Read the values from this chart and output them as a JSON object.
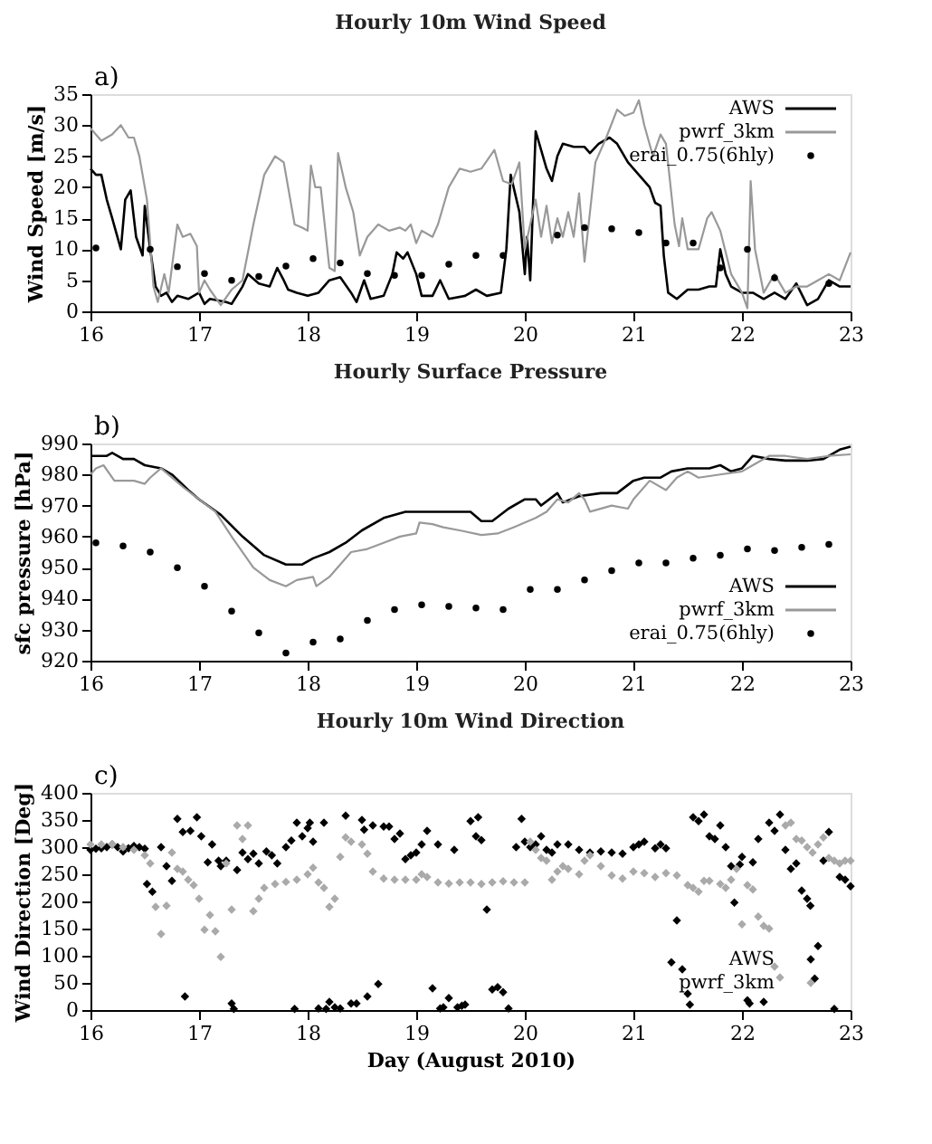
{
  "chart_data": [
    {
      "type": "line",
      "title": "Hourly 10m Wind Speed",
      "annotations": [
        "a)"
      ],
      "ylabel": "Wind Speed [m/s]",
      "xlim": [
        16,
        23
      ],
      "xticks": [
        16,
        17,
        18,
        19,
        20,
        21,
        22,
        23
      ],
      "ylim": [
        0,
        35
      ],
      "yticks": [
        0,
        5,
        10,
        15,
        20,
        25,
        30,
        35
      ],
      "grid": false,
      "legend": "top right",
      "series": [
        {
          "name": "AWS",
          "color": "#000000",
          "x": [
            16.0,
            16.05,
            16.1,
            16.15,
            16.2,
            16.28,
            16.32,
            16.37,
            16.42,
            16.48,
            16.5,
            16.55,
            16.6,
            16.65,
            16.7,
            16.75,
            16.8,
            16.9,
            17.0,
            17.05,
            17.1,
            17.25,
            17.3,
            17.4,
            17.45,
            17.55,
            17.65,
            17.72,
            17.78,
            17.82,
            17.9,
            18.0,
            18.1,
            18.2,
            18.3,
            18.4,
            18.45,
            18.52,
            18.58,
            18.7,
            18.78,
            18.82,
            18.88,
            18.92,
            19.0,
            19.05,
            19.15,
            19.22,
            19.3,
            19.45,
            19.55,
            19.65,
            19.78,
            19.83,
            19.87,
            19.95,
            20.0,
            20.02,
            20.05,
            20.1,
            20.15,
            20.2,
            20.25,
            20.3,
            20.35,
            20.45,
            20.55,
            20.6,
            20.68,
            20.78,
            20.85,
            20.95,
            21.05,
            21.15,
            21.2,
            21.25,
            21.28,
            21.32,
            21.4,
            21.5,
            21.6,
            21.7,
            21.76,
            21.8,
            21.85,
            21.9,
            22.0,
            22.1,
            22.2,
            22.3,
            22.4,
            22.5,
            22.6,
            22.7,
            22.8,
            22.9,
            23.0
          ],
          "values": [
            23,
            22,
            22,
            18,
            15,
            10,
            18,
            19.5,
            12,
            9,
            17,
            10,
            4,
            2.5,
            3,
            1.5,
            2.5,
            2,
            3,
            1.2,
            2,
            1.5,
            1.2,
            4,
            6,
            4.5,
            4,
            7,
            5,
            3.5,
            3,
            2.5,
            3,
            5,
            5.5,
            3,
            1.5,
            5,
            2,
            2.5,
            6,
            9.5,
            8.5,
            9.5,
            6,
            2.5,
            2.5,
            5,
            2,
            2.5,
            3.5,
            2.5,
            3,
            10,
            22,
            16,
            6,
            12,
            5,
            29,
            26,
            23,
            21,
            25,
            27,
            26.5,
            26.5,
            25.5,
            27,
            28,
            27,
            24,
            22,
            20,
            17.5,
            17,
            9,
            3,
            2,
            3.5,
            3.5,
            4,
            4,
            10,
            6,
            4,
            3,
            3,
            2,
            3,
            2,
            4.5,
            1,
            2,
            5,
            4,
            4
          ]
        },
        {
          "name": "pwrf_3km",
          "color": "#999999",
          "x": [
            16.0,
            16.1,
            16.2,
            16.28,
            16.35,
            16.4,
            16.45,
            16.52,
            16.58,
            16.62,
            16.68,
            16.72,
            16.8,
            16.85,
            16.92,
            16.98,
            17.0,
            17.05,
            17.1,
            17.2,
            17.3,
            17.4,
            17.5,
            17.6,
            17.7,
            17.78,
            17.88,
            17.95,
            18.0,
            18.03,
            18.07,
            18.12,
            18.2,
            18.25,
            18.28,
            18.35,
            18.42,
            18.48,
            18.55,
            18.65,
            18.75,
            18.85,
            18.9,
            18.95,
            19.0,
            19.05,
            19.15,
            19.2,
            19.3,
            19.4,
            19.5,
            19.6,
            19.72,
            19.8,
            19.88,
            19.95,
            20.0,
            20.05,
            20.1,
            20.15,
            20.2,
            20.25,
            20.3,
            20.35,
            20.4,
            20.45,
            20.5,
            20.55,
            20.6,
            20.65,
            20.75,
            20.85,
            20.92,
            21.0,
            21.05,
            21.1,
            21.18,
            21.25,
            21.3,
            21.38,
            21.42,
            21.45,
            21.5,
            21.6,
            21.68,
            21.72,
            21.8,
            21.9,
            22.0,
            22.05,
            22.08,
            22.12,
            22.2,
            22.3,
            22.4,
            22.5,
            22.6,
            22.7,
            22.8,
            22.9,
            23.0
          ],
          "values": [
            29.5,
            27.5,
            28.5,
            30,
            28,
            28,
            25,
            18,
            4,
            1.5,
            6,
            3,
            14,
            12,
            12.5,
            10.5,
            3,
            5,
            3.5,
            1,
            3.5,
            5,
            14,
            22,
            25,
            24,
            14,
            13.5,
            13,
            23.5,
            20,
            20,
            7,
            6.5,
            25.5,
            20,
            16,
            9,
            12,
            14,
            13,
            13.5,
            13,
            14,
            11,
            13,
            12,
            14,
            20,
            23,
            22.5,
            23,
            26,
            21,
            20.5,
            24,
            10,
            14,
            18,
            12,
            17,
            11,
            15,
            12,
            16,
            12,
            19,
            8,
            16,
            24,
            28,
            32.5,
            31.5,
            32,
            34,
            30,
            25,
            28.5,
            27,
            14,
            10.5,
            15,
            10,
            10,
            15,
            16,
            13,
            6,
            3,
            0.5,
            21,
            10,
            3,
            6,
            3,
            4,
            4,
            5,
            6,
            5,
            9.5
          ]
        },
        {
          "name": "erai_0.75(6hly)",
          "type": "scatter",
          "marker": "circle",
          "color": "#000000",
          "x": [
            16.05,
            16.55,
            16.8,
            17.05,
            17.3,
            17.55,
            17.8,
            18.05,
            18.3,
            18.55,
            18.8,
            19.05,
            19.3,
            19.55,
            19.8,
            20.3,
            20.55,
            20.8,
            21.05,
            21.3,
            21.55,
            21.8,
            22.05,
            22.3,
            22.8
          ],
          "values": [
            10.2,
            10,
            7.2,
            6.1,
            5,
            5.6,
            7.3,
            8.5,
            7.8,
            6.1,
            5.8,
            5.8,
            7.6,
            9,
            9,
            12.3,
            13.5,
            13.3,
            12.7,
            11,
            11,
            7,
            10,
            5.4,
            4.5
          ]
        }
      ]
    },
    {
      "type": "line",
      "title": "Hourly Surface Pressure",
      "annotations": [
        "b)"
      ],
      "ylabel": "sfc pressure [hPa]",
      "xlim": [
        16,
        23
      ],
      "xticks": [
        16,
        17,
        18,
        19,
        20,
        21,
        22,
        23
      ],
      "ylim": [
        920,
        990
      ],
      "yticks": [
        920,
        930,
        940,
        950,
        960,
        970,
        980,
        990
      ],
      "grid": false,
      "legend": "bottom right",
      "series": [
        {
          "name": "AWS",
          "color": "#000000",
          "x": [
            16.0,
            16.15,
            16.2,
            16.3,
            16.4,
            16.5,
            16.65,
            16.75,
            16.9,
            17.0,
            17.2,
            17.4,
            17.6,
            17.8,
            17.95,
            18.05,
            18.2,
            18.35,
            18.5,
            18.7,
            18.9,
            19.2,
            19.5,
            19.6,
            19.7,
            19.85,
            20.0,
            20.1,
            20.15,
            20.3,
            20.35,
            20.5,
            20.7,
            20.85,
            21.0,
            21.1,
            21.25,
            21.35,
            21.5,
            21.7,
            21.8,
            21.9,
            22.0,
            22.1,
            22.25,
            22.4,
            22.6,
            22.75,
            22.9,
            23.0
          ],
          "values": [
            986,
            986,
            987,
            985,
            985,
            983,
            982,
            980,
            975,
            972,
            967,
            960,
            954,
            951,
            951,
            953,
            955,
            958,
            962,
            966,
            968,
            968,
            968,
            965,
            965,
            969,
            972,
            972,
            970,
            974,
            971,
            973,
            974,
            974,
            978,
            979,
            979,
            981,
            982,
            982,
            983,
            981,
            982,
            986,
            985,
            984.5,
            984.5,
            985,
            988,
            989
          ]
        },
        {
          "name": "pwrf_3km",
          "color": "#999999",
          "x": [
            16.0,
            16.05,
            16.12,
            16.22,
            16.4,
            16.5,
            16.55,
            16.65,
            16.75,
            16.85,
            17.0,
            17.15,
            17.3,
            17.5,
            17.65,
            17.8,
            17.9,
            18.05,
            18.08,
            18.2,
            18.3,
            18.4,
            18.55,
            18.7,
            18.85,
            19.0,
            19.03,
            19.15,
            19.25,
            19.4,
            19.6,
            19.75,
            19.9,
            20.1,
            20.2,
            20.3,
            20.4,
            20.5,
            20.55,
            20.6,
            20.8,
            20.95,
            21.0,
            21.15,
            21.3,
            21.4,
            21.5,
            21.6,
            21.8,
            22.0,
            22.1,
            22.25,
            22.4,
            22.6,
            22.8,
            23.0
          ],
          "values": [
            980,
            982,
            983,
            978,
            978,
            977,
            979,
            982,
            979,
            976,
            972,
            968,
            960,
            950,
            946,
            944,
            946,
            947,
            944,
            947,
            951,
            955,
            956,
            958,
            960,
            961,
            964.5,
            964,
            963,
            962,
            960.5,
            961,
            963,
            966,
            968,
            972,
            971,
            974,
            972,
            968,
            970,
            969,
            972,
            978,
            975,
            979,
            981,
            979,
            980,
            981,
            983,
            986,
            986,
            985,
            986,
            986.5
          ]
        },
        {
          "name": "erai_0.75(6hly)",
          "type": "scatter",
          "marker": "circle",
          "color": "#000000",
          "x": [
            16.05,
            16.3,
            16.55,
            16.8,
            17.05,
            17.3,
            17.55,
            17.8,
            18.05,
            18.3,
            18.55,
            18.8,
            19.05,
            19.3,
            19.55,
            19.8,
            20.05,
            20.3,
            20.55,
            20.8,
            21.05,
            21.3,
            21.55,
            21.8,
            22.05,
            22.3,
            22.55,
            22.8
          ],
          "values": [
            958,
            957,
            955,
            950,
            944,
            936,
            929,
            922.5,
            926,
            927,
            933,
            936.5,
            938,
            937.5,
            937,
            936.5,
            943,
            943,
            946,
            949,
            951.5,
            951.5,
            953,
            954,
            956,
            955.5,
            956.5,
            957.5
          ]
        }
      ]
    },
    {
      "type": "scatter",
      "title": "Hourly 10m Wind Direction",
      "annotations": [
        "c)"
      ],
      "xlabel": "Day (August 2010)",
      "ylabel": "Wind Direction [Deg]",
      "xlim": [
        16,
        23
      ],
      "xticks": [
        16,
        17,
        18,
        19,
        20,
        21,
        22,
        23
      ],
      "ylim": [
        0,
        400
      ],
      "yticks": [
        0,
        50,
        100,
        150,
        200,
        250,
        300,
        350,
        400
      ],
      "grid": false,
      "legend": "bottom right",
      "series": [
        {
          "name": "AWS",
          "marker": "diamond",
          "color": "#000000",
          "x": [
            16.0,
            16.05,
            16.1,
            16.15,
            16.2,
            16.25,
            16.3,
            16.35,
            16.4,
            16.45,
            16.5,
            16.52,
            16.57,
            16.65,
            16.7,
            16.75,
            16.8,
            16.85,
            16.87,
            16.92,
            16.98,
            17.02,
            17.08,
            17.12,
            17.18,
            17.2,
            17.25,
            17.3,
            17.32,
            17.35,
            17.4,
            17.45,
            17.5,
            17.55,
            17.62,
            17.67,
            17.72,
            17.8,
            17.85,
            17.88,
            17.9,
            17.95,
            18.0,
            18.02,
            18.05,
            18.1,
            18.15,
            18.17,
            18.2,
            18.25,
            18.3,
            18.35,
            18.4,
            18.45,
            18.5,
            18.52,
            18.55,
            18.6,
            18.65,
            18.7,
            18.75,
            18.8,
            18.85,
            18.9,
            18.95,
            19.0,
            19.05,
            19.1,
            19.15,
            19.2,
            19.22,
            19.25,
            19.3,
            19.35,
            19.38,
            19.42,
            19.45,
            19.5,
            19.55,
            19.57,
            19.6,
            19.65,
            19.7,
            19.75,
            19.8,
            19.85,
            19.92,
            19.97,
            20.0,
            20.05,
            20.1,
            20.15,
            20.2,
            20.25,
            20.3,
            20.4,
            20.5,
            20.6,
            20.7,
            20.8,
            20.9,
            21.0,
            21.05,
            21.1,
            21.2,
            21.25,
            21.3,
            21.35,
            21.4,
            21.45,
            21.5,
            21.52,
            21.55,
            21.6,
            21.65,
            21.7,
            21.75,
            21.8,
            21.85,
            21.9,
            21.93,
            21.98,
            22.0,
            22.05,
            22.07,
            22.1,
            22.15,
            22.2,
            22.25,
            22.3,
            22.35,
            22.4,
            22.45,
            22.5,
            22.55,
            22.6,
            22.63,
            22.67,
            22.7,
            22.75,
            22.8,
            22.85,
            22.9,
            22.95,
            23.0
          ],
          "values": [
            295,
            297,
            298,
            300,
            305,
            300,
            292,
            298,
            302,
            300,
            297,
            232,
            218,
            300,
            265,
            238,
            352,
            328,
            25,
            330,
            355,
            320,
            272,
            305,
            275,
            265,
            275,
            12,
            2,
            258,
            290,
            278,
            288,
            270,
            292,
            285,
            270,
            300,
            312,
            2,
            345,
            320,
            335,
            345,
            310,
            3,
            345,
            2,
            15,
            5,
            3,
            358,
            12,
            12,
            350,
            332,
            25,
            340,
            48,
            338,
            338,
            315,
            325,
            278,
            285,
            290,
            305,
            330,
            40,
            305,
            3,
            5,
            22,
            295,
            5,
            8,
            10,
            348,
            320,
            355,
            313,
            185,
            38,
            42,
            33,
            3,
            300,
            352,
            310,
            300,
            305,
            320,
            295,
            290,
            305,
            305,
            295,
            290,
            292,
            290,
            288,
            300,
            305,
            310,
            298,
            305,
            298,
            88,
            165,
            75,
            30,
            10,
            355,
            348,
            360,
            320,
            315,
            340,
            300,
            265,
            198,
            268,
            282,
            18,
            12,
            272,
            315,
            15,
            345,
            330,
            360,
            295,
            260,
            270,
            220,
            205,
            192,
            58,
            118,
            275,
            328,
            2,
            245,
            240,
            228
          ]
        },
        {
          "name": "pwrf_3km",
          "marker": "diamond",
          "color": "#aaaaaa",
          "x": [
            16.0,
            16.1,
            16.2,
            16.3,
            16.4,
            16.5,
            16.55,
            16.6,
            16.65,
            16.7,
            16.75,
            16.8,
            16.85,
            16.9,
            16.95,
            17.0,
            17.05,
            17.1,
            17.15,
            17.2,
            17.25,
            17.3,
            17.35,
            17.4,
            17.45,
            17.5,
            17.55,
            17.6,
            17.7,
            17.8,
            17.9,
            18.0,
            18.05,
            18.1,
            18.15,
            18.2,
            18.25,
            18.3,
            18.35,
            18.4,
            18.5,
            18.55,
            18.6,
            18.7,
            18.8,
            18.9,
            19.0,
            19.05,
            19.1,
            19.2,
            19.3,
            19.4,
            19.5,
            19.6,
            19.7,
            19.8,
            19.9,
            20.0,
            20.05,
            20.1,
            20.15,
            20.2,
            20.25,
            20.3,
            20.35,
            20.4,
            20.5,
            20.55,
            20.6,
            20.7,
            20.8,
            20.9,
            21.0,
            21.1,
            21.2,
            21.3,
            21.4,
            21.5,
            21.55,
            21.6,
            21.65,
            21.7,
            21.8,
            21.85,
            21.9,
            21.95,
            22.0,
            22.05,
            22.1,
            22.15,
            22.2,
            22.25,
            22.3,
            22.35,
            22.4,
            22.45,
            22.5,
            22.55,
            22.6,
            22.65,
            22.7,
            22.75,
            22.8,
            22.85,
            22.9,
            22.95,
            23.0
          ],
          "values": [
            305,
            305,
            305,
            300,
            295,
            285,
            270,
            190,
            140,
            192,
            290,
            260,
            255,
            240,
            230,
            205,
            148,
            175,
            145,
            98,
            270,
            185,
            340,
            315,
            340,
            182,
            205,
            225,
            232,
            236,
            240,
            250,
            262,
            235,
            225,
            190,
            205,
            282,
            318,
            310,
            305,
            288,
            255,
            242,
            240,
            240,
            240,
            250,
            245,
            235,
            233,
            235,
            235,
            232,
            235,
            237,
            235,
            235,
            310,
            295,
            280,
            275,
            240,
            255,
            265,
            260,
            250,
            275,
            285,
            265,
            248,
            242,
            255,
            252,
            245,
            252,
            248,
            230,
            225,
            218,
            238,
            238,
            232,
            225,
            240,
            260,
            158,
            230,
            222,
            172,
            155,
            150,
            80,
            60,
            340,
            345,
            315,
            312,
            300,
            290,
            305,
            318,
            280,
            275,
            270,
            275,
            275
          ]
        }
      ]
    }
  ]
}
